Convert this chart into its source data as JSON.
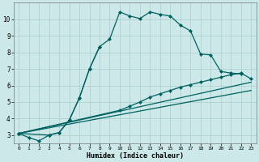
{
  "xlabel": "Humidex (Indice chaleur)",
  "background_color": "#cce8e8",
  "grid_color": "#aacccc",
  "line_color": "#006060",
  "xlim": [
    -0.5,
    23.5
  ],
  "ylim": [
    2.5,
    11.0
  ],
  "yticks": [
    3,
    4,
    5,
    6,
    7,
    8,
    9,
    10
  ],
  "xticks": [
    0,
    1,
    2,
    3,
    4,
    5,
    6,
    7,
    8,
    9,
    10,
    11,
    12,
    13,
    14,
    15,
    16,
    17,
    18,
    19,
    20,
    21,
    22,
    23
  ],
  "line1_x": [
    0,
    1,
    2,
    3,
    4,
    5,
    6,
    7,
    8,
    9,
    10,
    11,
    12,
    13,
    14,
    15,
    16,
    17,
    18,
    19,
    20,
    21,
    22
  ],
  "line1_y": [
    3.1,
    2.85,
    2.65,
    3.0,
    3.15,
    3.9,
    5.25,
    7.0,
    8.35,
    8.8,
    10.45,
    10.2,
    10.05,
    10.45,
    10.3,
    10.2,
    9.65,
    9.3,
    7.9,
    7.85,
    6.85,
    6.75,
    6.7
  ],
  "line2_x": [
    0,
    3,
    4,
    5,
    6,
    7,
    8
  ],
  "line2_y": [
    3.1,
    3.0,
    3.15,
    3.9,
    5.25,
    7.0,
    8.35
  ],
  "line3_x": [
    0,
    10,
    11,
    12,
    13,
    14,
    15,
    16,
    17,
    18,
    19,
    20,
    21,
    22,
    23
  ],
  "line3_y": [
    3.1,
    4.5,
    4.75,
    5.0,
    5.3,
    5.5,
    5.7,
    5.9,
    6.05,
    6.2,
    6.35,
    6.5,
    6.65,
    6.75,
    6.4
  ],
  "line4_x": [
    0,
    23
  ],
  "line4_y": [
    3.1,
    6.2
  ],
  "line5_x": [
    0,
    23
  ],
  "line5_y": [
    3.1,
    5.7
  ]
}
